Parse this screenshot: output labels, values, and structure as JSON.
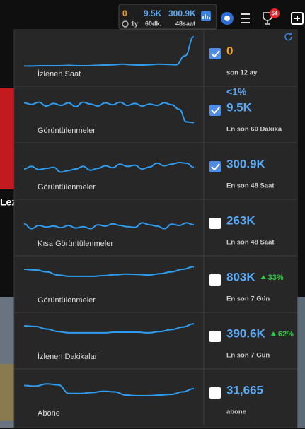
{
  "topbar": {
    "stats": [
      {
        "value": "0",
        "sub": "1y",
        "color": "#f0a020"
      },
      {
        "value": "9.5K",
        "sub": "60dk.",
        "color": "#5aa9f5"
      },
      {
        "value": "300.9K",
        "sub": "48saat",
        "color": "#5aa9f5"
      }
    ],
    "badge": "54"
  },
  "background": {
    "text": "Lez"
  },
  "panel": {
    "line_color": "#2f9cf0",
    "rows": [
      {
        "label": "İzlenen Saat",
        "value": "0",
        "subtitle": "son 12 ay",
        "checked": true,
        "color": "#f0a020",
        "trend": [
          8,
          8,
          9,
          9,
          9,
          10,
          9,
          9,
          10,
          11,
          12,
          14,
          12,
          11,
          12,
          14,
          13,
          12,
          40,
          100
        ]
      },
      {
        "label": "Görüntülenmeler",
        "value": "9.5K",
        "subtitle": "En son 60 Dakika",
        "checked": true,
        "color": "#5aa9f5",
        "note": "<1%",
        "trend": [
          70,
          65,
          72,
          60,
          68,
          62,
          70,
          58,
          72,
          66,
          60,
          70,
          64,
          72,
          62,
          68,
          60,
          66,
          62,
          70,
          64,
          50,
          10,
          8
        ]
      },
      {
        "label": "Görüntülenmeler",
        "value": "300.9K",
        "subtitle": "En son 48 Saat",
        "checked": true,
        "color": "#5aa9f5",
        "trend": [
          40,
          48,
          38,
          42,
          45,
          30,
          35,
          40,
          48,
          36,
          42,
          50,
          44,
          55,
          48,
          52,
          40,
          46,
          58,
          50,
          55,
          60,
          58,
          45
        ]
      },
      {
        "label": "Kısa Görüntülenmeler",
        "value": "263K",
        "subtitle": "En son 48 Saat",
        "checked": false,
        "color": "#5aa9f5",
        "trend": [
          45,
          30,
          40,
          35,
          38,
          33,
          40,
          32,
          36,
          30,
          42,
          38,
          45,
          40,
          36,
          34,
          48,
          42,
          38,
          30,
          44,
          40,
          48,
          42
        ]
      },
      {
        "label": "Görüntülenmeler",
        "value": "803K",
        "subtitle": "En son 7 Gün",
        "checked": false,
        "color": "#5aa9f5",
        "change": "33%",
        "trend": [
          80,
          78,
          72,
          62,
          58,
          58,
          58,
          60,
          63,
          65,
          64,
          62,
          66,
          72,
          80,
          88
        ]
      },
      {
        "label": "İzlenen Dakikalar",
        "value": "390.6K",
        "subtitle": "En son 7 Gün",
        "checked": false,
        "color": "#5aa9f5",
        "change": "62%",
        "trend": [
          80,
          78,
          70,
          62,
          58,
          58,
          58,
          58,
          60,
          60,
          60,
          58,
          62,
          68,
          76,
          86
        ]
      },
      {
        "label": "Abone",
        "value": "31,665",
        "subtitle": "abone",
        "checked": false,
        "color": "#5aa9f5",
        "trend": [
          70,
          68,
          75,
          72,
          45,
          45,
          48,
          52,
          50,
          40,
          38,
          38,
          40,
          42,
          50,
          60
        ]
      }
    ]
  }
}
